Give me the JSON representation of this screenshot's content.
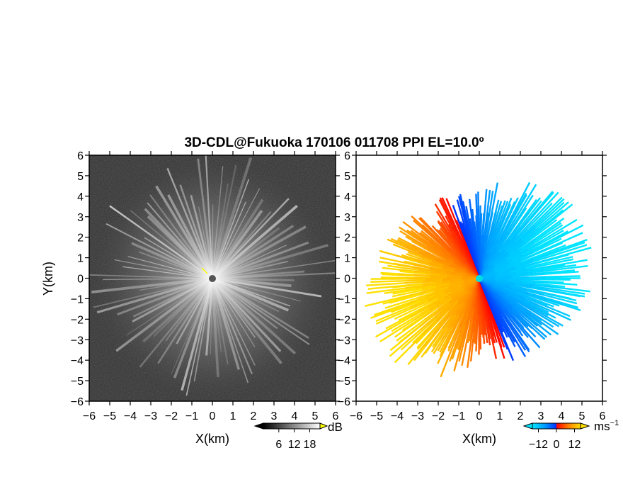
{
  "title": "3D-CDL@Fukuoka 170106 011708 PPI EL=10.0º",
  "chart_data": [
    {
      "type": "heatmap",
      "name": "signal-intensity-ppi",
      "xlabel": "X(km)",
      "ylabel": "Y(km)",
      "xlim": [
        -6,
        6
      ],
      "ylim": [
        -6,
        6
      ],
      "x_ticks": [
        "−6",
        "−5",
        "−4",
        "−3",
        "−2",
        "−1",
        "0",
        "1",
        "2",
        "3",
        "4",
        "5",
        "6"
      ],
      "y_ticks": [
        "6",
        "5",
        "4",
        "3",
        "2",
        "1",
        "0",
        "−1",
        "−2",
        "−3",
        "−4",
        "−5",
        "−6"
      ],
      "colorbar": {
        "unit": "dB",
        "range": [
          0,
          22
        ],
        "tick_labels": [
          "6",
          "12",
          "18"
        ],
        "tick_values": [
          6,
          12,
          18
        ],
        "colors": [
          "#000000",
          "#ffffff"
        ],
        "overflow_color": "#ffff00"
      },
      "radar_center": [
        0,
        0
      ],
      "max_range_km": 6
    },
    {
      "type": "heatmap",
      "name": "radial-velocity-ppi",
      "xlabel": "X(km)",
      "ylabel": "",
      "xlim": [
        -6,
        6
      ],
      "ylim": [
        -6,
        6
      ],
      "x_ticks": [
        "−6",
        "−5",
        "−4",
        "−3",
        "−2",
        "−1",
        "0",
        "1",
        "2",
        "3",
        "4",
        "5",
        "6"
      ],
      "y_ticks": [
        "6",
        "5",
        "4",
        "3",
        "2",
        "1",
        "0",
        "−1",
        "−2",
        "−3",
        "−4",
        "−5",
        "−6"
      ],
      "colorbar": {
        "unit": "ms",
        "unit_exponent": "−1",
        "range": [
          -16,
          16
        ],
        "tick_labels": [
          "−12",
          "0",
          "12"
        ],
        "tick_values": [
          -12,
          0,
          12
        ],
        "colors": [
          "#00e5ff",
          "#00a0ff",
          "#0030ff",
          "#ff0000",
          "#ff8000",
          "#ffe000"
        ]
      },
      "radar_center": [
        0,
        0
      ],
      "max_range_km": 6
    }
  ]
}
